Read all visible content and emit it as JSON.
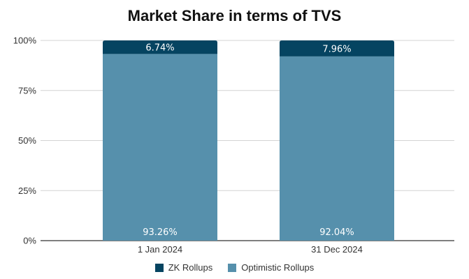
{
  "colors": {
    "zk_rollups": "#054461",
    "optimistic_rollups": "#5690ac"
  },
  "chart_data": {
    "type": "bar",
    "stacked": true,
    "title": "Market Share in terms of TVS",
    "xlabel": "",
    "ylabel": "",
    "categories": [
      "1 Jan 2024",
      "31 Dec 2024"
    ],
    "series": [
      {
        "name": "ZK Rollups",
        "values": [
          6.74,
          7.96
        ],
        "labels": [
          "6.74%",
          "7.96%"
        ]
      },
      {
        "name": "Optimistic Rollups",
        "values": [
          93.26,
          92.04
        ],
        "labels": [
          "93.26%",
          "92.04%"
        ]
      }
    ],
    "ylim": [
      0,
      100
    ],
    "yticks": [
      0,
      25,
      50,
      75,
      100
    ],
    "ytick_labels": [
      "0%",
      "25%",
      "50%",
      "75%",
      "100%"
    ],
    "grid": true,
    "legend_position": "bottom"
  }
}
